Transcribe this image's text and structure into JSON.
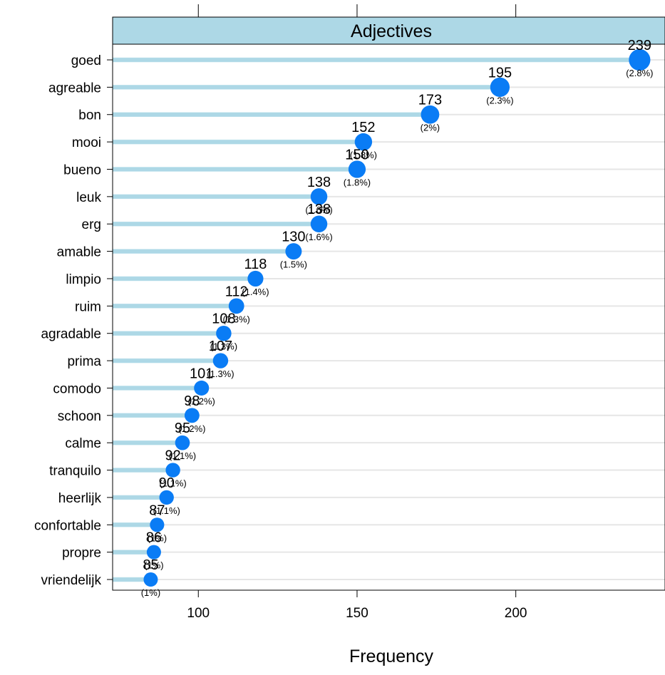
{
  "chart_data": {
    "type": "dot",
    "title": "Adjectives",
    "xlabel": "Frequency",
    "ylabel": "",
    "xlim": [
      73,
      247
    ],
    "xticks": [
      100,
      150,
      200
    ],
    "grid": true,
    "colors": {
      "point": "#0a7cf5",
      "strip": "#add8e6",
      "bar": "#add8e6",
      "gridline": "#e6e6e6"
    },
    "categories": [
      "goed",
      "agreable",
      "bon",
      "mooi",
      "bueno",
      "leuk",
      "erg",
      "amable",
      "limpio",
      "ruim",
      "agradable",
      "prima",
      "comodo",
      "schoon",
      "calme",
      "tranquilo",
      "heerlijk",
      "confortable",
      "propre",
      "vriendelijk"
    ],
    "values": [
      239,
      195,
      173,
      152,
      150,
      138,
      138,
      130,
      118,
      112,
      108,
      107,
      101,
      98,
      95,
      92,
      90,
      87,
      86,
      85
    ],
    "value_labels": [
      "239",
      "195",
      "173",
      "152",
      "150",
      "138",
      "138",
      "130",
      "118",
      "112",
      "108",
      "107",
      "101",
      "98",
      "95",
      "92",
      "90",
      "87",
      "86",
      "85"
    ],
    "percent_labels": [
      "(2.8%)",
      "(2.3%)",
      "(2%)",
      "(1.8%)",
      "(1.8%)",
      "(1.6%)",
      "(1.6%)",
      "(1.5%)",
      "(1.4%)",
      "(1.3%)",
      "(1.3%)",
      "(1.3%)",
      "(1.2%)",
      "(1.2%)",
      "(1.1%)",
      "(1.1%)",
      "(1.1%)",
      "(1%)",
      "(1%)",
      "(1%)"
    ]
  }
}
